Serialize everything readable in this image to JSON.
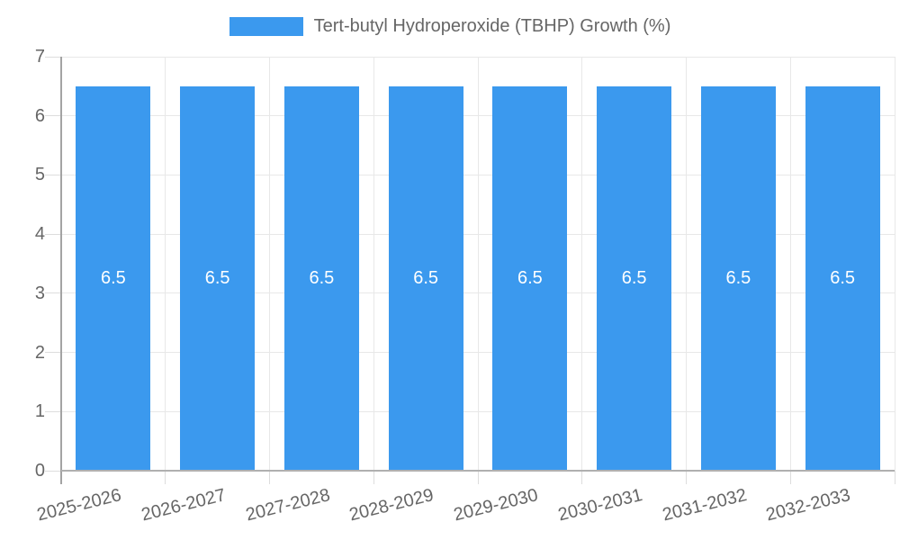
{
  "legend": {
    "label": "Tert-butyl Hydroperoxide (TBHP) Growth (%)"
  },
  "chart_data": {
    "type": "bar",
    "title": "Tert-butyl Hydroperoxide (TBHP) Growth (%)",
    "categories": [
      "2025-2026",
      "2026-2027",
      "2027-2028",
      "2028-2029",
      "2029-2030",
      "2030-2031",
      "2031-2032",
      "2032-2033"
    ],
    "series": [
      {
        "name": "Tert-butyl Hydroperoxide (TBHP) Growth (%)",
        "values": [
          6.5,
          6.5,
          6.5,
          6.5,
          6.5,
          6.5,
          6.5,
          6.5
        ]
      }
    ],
    "value_labels": [
      "6.5",
      "6.5",
      "6.5",
      "6.5",
      "6.5",
      "6.5",
      "6.5",
      "6.5"
    ],
    "xlabel": "",
    "ylabel": "",
    "ylim": [
      0,
      7
    ],
    "yticks": [
      0,
      1,
      2,
      3,
      4,
      5,
      6,
      7
    ],
    "grid": true,
    "legend_position": "top",
    "bar_color": "#3b99ee",
    "value_label_color": "#ffffff",
    "tick_text_color": "#666666"
  }
}
